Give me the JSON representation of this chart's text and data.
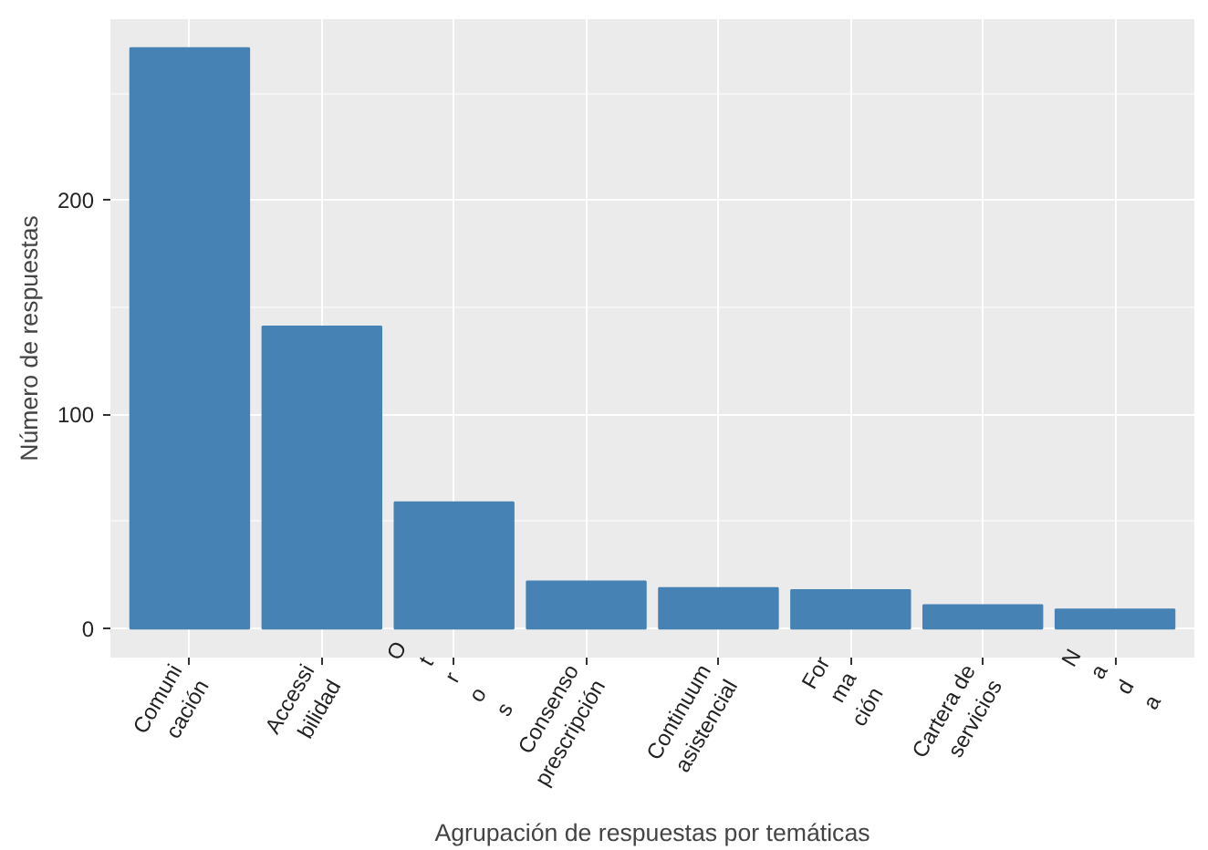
{
  "chart_data": {
    "type": "bar",
    "xlabel": "Agrupación de respuestas por temáticas",
    "ylabel": "Número de respuestas",
    "categories": [
      "Comuni\ncación",
      "Accessi\nbilidad",
      "O\nt\nr\no\ns",
      "Consenso\nprescripción",
      "Continuum\nasistencial",
      "For\nma\nción",
      "Cartera de\nservicios",
      "N\na\nd\na"
    ],
    "values": [
      271,
      141,
      59,
      22,
      19,
      18,
      11,
      9
    ],
    "color": "#4682b4",
    "ylim": [
      -13.5,
      284.5
    ],
    "yticks": [
      0,
      100,
      200
    ],
    "grid": true
  }
}
